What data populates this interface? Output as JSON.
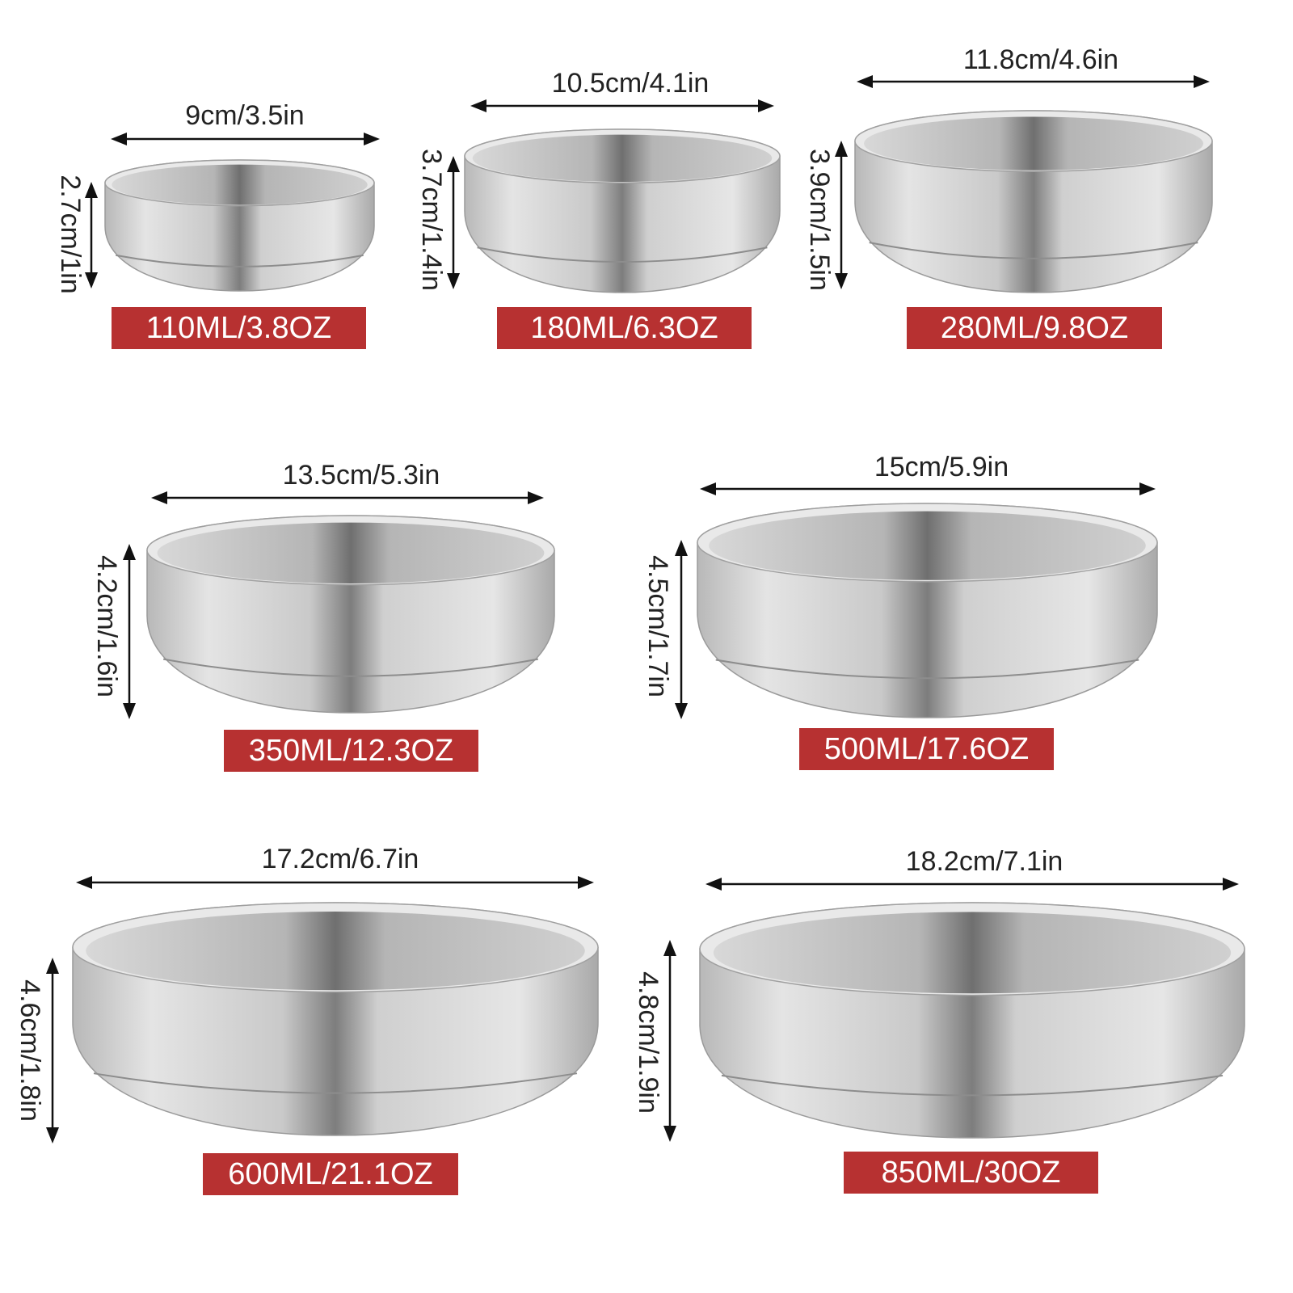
{
  "bowls": [
    {
      "width": "9cm/3.5in",
      "height": "2.7cm/1in",
      "capacity": "110ML/3.8OZ"
    },
    {
      "width": "10.5cm/4.1in",
      "height": "3.7cm/1.4in",
      "capacity": "180ML/6.3OZ"
    },
    {
      "width": "11.8cm/4.6in",
      "height": "3.9cm/1.5in",
      "capacity": "280ML/9.8OZ"
    },
    {
      "width": "13.5cm/5.3in",
      "height": "4.2cm/1.6in",
      "capacity": "350ML/12.3OZ"
    },
    {
      "width": "15cm/5.9in",
      "height": "4.5cm/1.7in",
      "capacity": "500ML/17.6OZ"
    },
    {
      "width": "17.2cm/6.7in",
      "height": "4.6cm/1.8in",
      "capacity": "600ML/21.1OZ"
    },
    {
      "width": "18.2cm/7.1in",
      "height": "4.8cm/1.9in",
      "capacity": "850ML/30OZ"
    }
  ]
}
